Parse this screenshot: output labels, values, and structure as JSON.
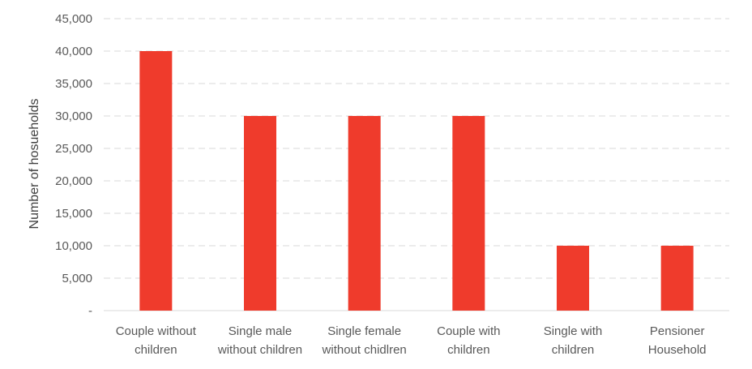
{
  "chart_data": {
    "type": "bar",
    "title": "",
    "xlabel": "",
    "ylabel": "Number of hosueholds",
    "categories": [
      [
        "Couple without",
        "children"
      ],
      [
        "Single male",
        "without children"
      ],
      [
        "Single female",
        "without chidlren"
      ],
      [
        "Couple with",
        "children"
      ],
      [
        "Single with",
        "children"
      ],
      [
        "Pensioner",
        "Household"
      ]
    ],
    "values": [
      40000,
      30000,
      30000,
      30000,
      10000,
      10000
    ],
    "ylim": [
      0,
      45000
    ],
    "yticks": [
      0,
      5000,
      10000,
      15000,
      20000,
      25000,
      30000,
      35000,
      40000,
      45000
    ],
    "ytick_labels": [
      "-",
      "5,000",
      "10,000",
      "15,000",
      "20,000",
      "25,000",
      "30,000",
      "35,000",
      "40,000",
      "45,000"
    ],
    "bar_color": "#ef3b2c",
    "grid": true,
    "legend": "none"
  }
}
